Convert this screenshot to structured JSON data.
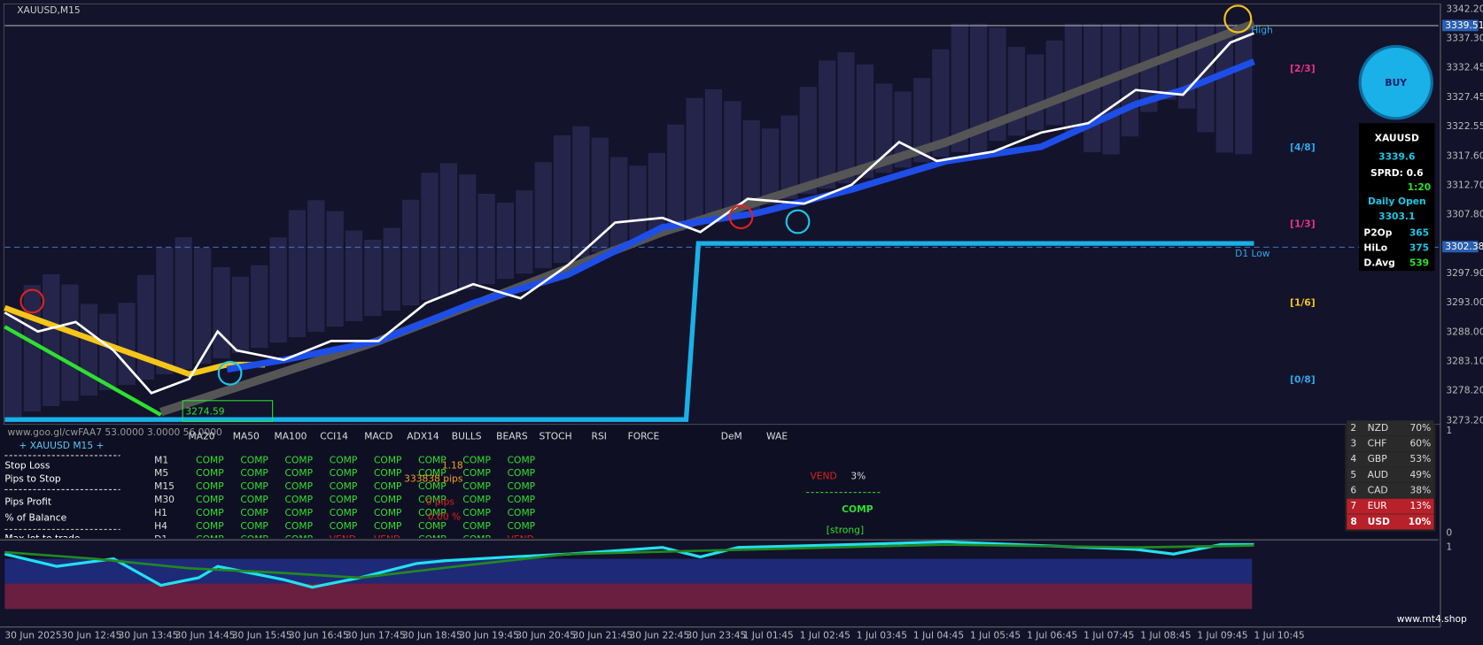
{
  "header": {
    "symbol": "XAUUSD,M15",
    "info": "www.goo.gl/cwFAA7 53.0000 3.0000 56.0000",
    "panel_title": "+ XAUUSD M15 +"
  },
  "price_ticks": [
    "3342.20",
    "3337.30",
    "3332.45",
    "3327.45",
    "3322.55",
    "3317.60",
    "3312.70",
    "3307.80",
    "3297.90",
    "3293.00",
    "3288.00",
    "3283.10",
    "3278.20",
    "3273.20"
  ],
  "price_markers": [
    "3339.51",
    "3302.38"
  ],
  "time_ticks": [
    "30 Jun 2025",
    "30 Jun 12:45",
    "30 Jun 13:45",
    "30 Jun 14:45",
    "30 Jun 15:45",
    "30 Jun 16:45",
    "30 Jun 17:45",
    "30 Jun 18:45",
    "30 Jun 19:45",
    "30 Jun 20:45",
    "30 Jun 21:45",
    "30 Jun 22:45",
    "30 Jun 23:45",
    "1 Jul 01:45",
    "1 Jul 02:45",
    "1 Jul 03:45",
    "1 Jul 04:45",
    "1 Jul 05:45",
    "1 Jul 06:45",
    "1 Jul 07:45",
    "1 Jul 08:45",
    "1 Jul 09:45",
    "1 Jul 10:45"
  ],
  "chart_labels": {
    "price_box": "3274.59",
    "d1_low": "D1 Low",
    "high": "High"
  },
  "levels": [
    {
      "label": "[2/3]",
      "color": "#e8338a"
    },
    {
      "label": "[4/8]",
      "color": "#2fa8e8"
    },
    {
      "label": "[1/3]",
      "color": "#e8338a"
    },
    {
      "label": "[1/6]",
      "color": "#f5c518"
    },
    {
      "label": "[0/8]",
      "color": "#2fa8e8"
    }
  ],
  "signal_panel": {
    "button": "BUY",
    "symbol": "XAUUSD",
    "price": "3339.6",
    "spread": "SPRD: 0.6",
    "timer": "1:20",
    "daily_open_label": "Daily Open",
    "daily_open": "3303.1",
    "stats": [
      {
        "label": "P2Op",
        "value": "365"
      },
      {
        "label": "HiLo",
        "value": "375"
      },
      {
        "label": "D.Avg",
        "value": "539"
      }
    ]
  },
  "indicators": {
    "columns": [
      "MA20",
      "MA50",
      "MA100",
      "CCI14",
      "MACD",
      "ADX14",
      "BULLS",
      "BEARS",
      "STOCH",
      "RSI",
      "FORCE",
      "DeM",
      "WAE"
    ],
    "rows": [
      {
        "tf": "M1",
        "cells": [
          "COMP",
          "COMP",
          "COMP",
          "COMP",
          "COMP",
          "COMP",
          "COMP",
          "COMP"
        ]
      },
      {
        "tf": "M5",
        "cells": [
          "COMP",
          "COMP",
          "COMP",
          "COMP",
          "COMP",
          "COMP",
          "COMP",
          "COMP"
        ]
      },
      {
        "tf": "M15",
        "cells": [
          "COMP",
          "COMP",
          "COMP",
          "COMP",
          "COMP",
          "COMP",
          "COMP",
          "COMP"
        ]
      },
      {
        "tf": "M30",
        "cells": [
          "COMP",
          "COMP",
          "COMP",
          "COMP",
          "COMP",
          "COMP",
          "COMP",
          "COMP"
        ]
      },
      {
        "tf": "H1",
        "cells": [
          "COMP",
          "COMP",
          "COMP",
          "COMP",
          "COMP",
          "COMP",
          "COMP",
          "COMP"
        ]
      },
      {
        "tf": "H4",
        "cells": [
          "COMP",
          "COMP",
          "COMP",
          "COMP",
          "COMP",
          "COMP",
          "COMP",
          "COMP"
        ]
      },
      {
        "tf": "D1",
        "cells": [
          "COMP",
          "COMP",
          "COMP",
          "VEND",
          "VEND",
          "COMP",
          "COMP",
          "VEND"
        ]
      }
    ]
  },
  "risk": {
    "labels": [
      "Stop Loss",
      "Pips to Stop",
      "Pips Profit",
      "% of Balance",
      "Max lot to trade"
    ],
    "overlay": [
      "1.18",
      "333838 pips",
      "0 pips",
      "0.00 %"
    ]
  },
  "verdict": {
    "side": "VEND",
    "pct": "3%",
    "result": "COMP",
    "strength": "[strong]"
  },
  "strength": [
    {
      "rank": "2",
      "ccy": "NZD",
      "pct": "70%"
    },
    {
      "rank": "3",
      "ccy": "CHF",
      "pct": "60%"
    },
    {
      "rank": "4",
      "ccy": "GBP",
      "pct": "53%"
    },
    {
      "rank": "5",
      "ccy": "AUD",
      "pct": "49%"
    },
    {
      "rank": "6",
      "ccy": "CAD",
      "pct": "38%"
    },
    {
      "rank": "7",
      "ccy": "EUR",
      "pct": "13%"
    },
    {
      "rank": "8",
      "ccy": "USD",
      "pct": "10%"
    }
  ],
  "sub_axis": [
    "1",
    "0",
    "1"
  ],
  "watermark": "www.mt4.shop"
}
